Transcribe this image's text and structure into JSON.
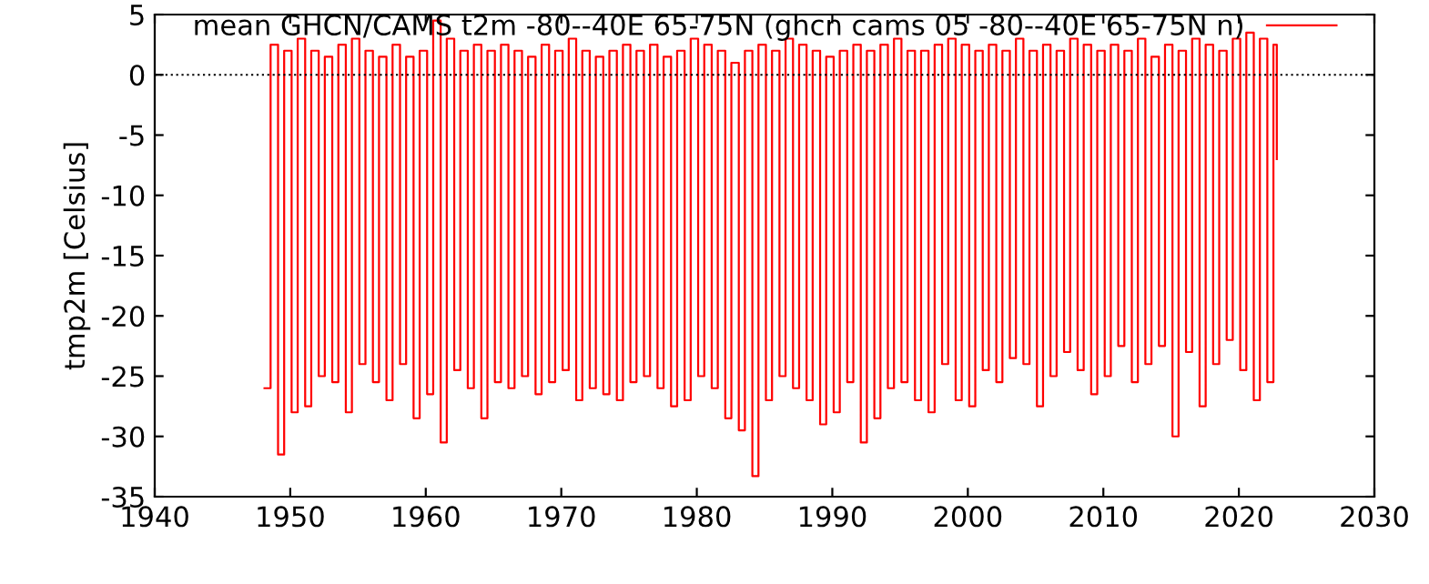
{
  "chart_data": {
    "type": "step",
    "ylabel": "tmp2m [Celsius]",
    "xlim": [
      1940,
      2030
    ],
    "ylim": [
      -35,
      5
    ],
    "xticks": [
      1940,
      1950,
      1960,
      1970,
      1980,
      1990,
      2000,
      2010,
      2020,
      2030
    ],
    "yticks": [
      -35,
      -30,
      -25,
      -20,
      -15,
      -10,
      -5,
      0,
      5
    ],
    "legend": "top",
    "grid": false,
    "line_style": "solid",
    "marker": "none",
    "ref_lines": [
      {
        "axis": "y",
        "value": 0,
        "color": "#000000",
        "line_style": "dotted"
      }
    ],
    "series": [
      {
        "name": "mean GHCN/CAMS t2m -80--40E 65-75N (ghcn cams 05 -80--40E 65-75N n)",
        "color": "#ff0000",
        "x": [
          1948.1,
          1948.55,
          1949.1,
          1949.55,
          1950.1,
          1950.55,
          1951.1,
          1951.55,
          1952.1,
          1952.55,
          1953.1,
          1953.55,
          1954.1,
          1954.55,
          1955.1,
          1955.55,
          1956.1,
          1956.55,
          1957.1,
          1957.55,
          1958.1,
          1958.55,
          1959.1,
          1959.55,
          1960.1,
          1960.55,
          1961.1,
          1961.55,
          1962.1,
          1962.55,
          1963.1,
          1963.55,
          1964.1,
          1964.55,
          1965.1,
          1965.55,
          1966.1,
          1966.55,
          1967.1,
          1967.55,
          1968.1,
          1968.55,
          1969.1,
          1969.55,
          1970.1,
          1970.55,
          1971.1,
          1971.55,
          1972.1,
          1972.55,
          1973.1,
          1973.55,
          1974.1,
          1974.55,
          1975.1,
          1975.55,
          1976.1,
          1976.55,
          1977.1,
          1977.55,
          1978.1,
          1978.55,
          1979.1,
          1979.55,
          1980.1,
          1980.55,
          1981.1,
          1981.55,
          1982.1,
          1982.55,
          1983.1,
          1983.55,
          1984.1,
          1984.55,
          1985.1,
          1985.55,
          1986.1,
          1986.55,
          1987.1,
          1987.55,
          1988.1,
          1988.55,
          1989.1,
          1989.55,
          1990.1,
          1990.55,
          1991.1,
          1991.55,
          1992.1,
          1992.55,
          1993.1,
          1993.55,
          1994.1,
          1994.55,
          1995.1,
          1995.55,
          1996.1,
          1996.55,
          1997.1,
          1997.55,
          1998.1,
          1998.55,
          1999.1,
          1999.55,
          2000.1,
          2000.55,
          2001.1,
          2001.55,
          2002.1,
          2002.55,
          2003.1,
          2003.55,
          2004.1,
          2004.55,
          2005.1,
          2005.55,
          2006.1,
          2006.55,
          2007.1,
          2007.55,
          2008.1,
          2008.55,
          2009.1,
          2009.55,
          2010.1,
          2010.55,
          2011.1,
          2011.55,
          2012.1,
          2012.55,
          2013.1,
          2013.55,
          2014.1,
          2014.55,
          2015.1,
          2015.55,
          2016.1,
          2016.55,
          2017.1,
          2017.55,
          2018.1,
          2018.55,
          2019.1,
          2019.55,
          2020.1,
          2020.55,
          2021.1,
          2021.55,
          2022.1,
          2022.55,
          2022.8
        ],
        "values": [
          -26,
          2.5,
          -31.5,
          2,
          -28,
          3,
          -27.5,
          2,
          -25,
          1.5,
          -25.5,
          2.5,
          -28,
          3,
          -24,
          2,
          -25.5,
          1.5,
          -27,
          2.5,
          -24,
          1.5,
          -28.5,
          2,
          -26.5,
          4.5,
          -30.5,
          3,
          -24.5,
          2,
          -26,
          2.5,
          -28.5,
          2,
          -25.5,
          2.5,
          -26,
          2,
          -25,
          1.5,
          -26.5,
          2.5,
          -25.5,
          2,
          -24.5,
          3,
          -27,
          2,
          -26,
          1.5,
          -26.5,
          2,
          -27,
          2.5,
          -25.5,
          2,
          -25,
          2.5,
          -26,
          1.5,
          -27.5,
          2,
          -27,
          3,
          -25,
          2.5,
          -26,
          2,
          -28.5,
          1,
          -29.5,
          2,
          -33.3,
          2.5,
          -27,
          2,
          -25,
          3,
          -26,
          2.5,
          -27,
          2,
          -29,
          1.5,
          -28,
          2,
          -25.5,
          2.5,
          -30.5,
          2,
          -28.5,
          2.5,
          -26,
          3,
          -25.5,
          2,
          -27,
          2,
          -28,
          2.5,
          -24,
          3,
          -27,
          2.5,
          -27.5,
          2,
          -24.5,
          2.5,
          -25.5,
          2,
          -23.5,
          3,
          -24,
          2,
          -27.5,
          2.5,
          -25,
          2,
          -23,
          3,
          -24.5,
          2.5,
          -26.5,
          2,
          -25,
          2.5,
          -22.5,
          2,
          -25.5,
          3,
          -24,
          1.5,
          -22.5,
          2.5,
          -30,
          2,
          -23,
          3,
          -27.5,
          2.5,
          -24,
          2,
          -22,
          3,
          -24.5,
          3.5,
          -27,
          3,
          -25.5,
          2.5,
          -7
        ]
      }
    ]
  }
}
